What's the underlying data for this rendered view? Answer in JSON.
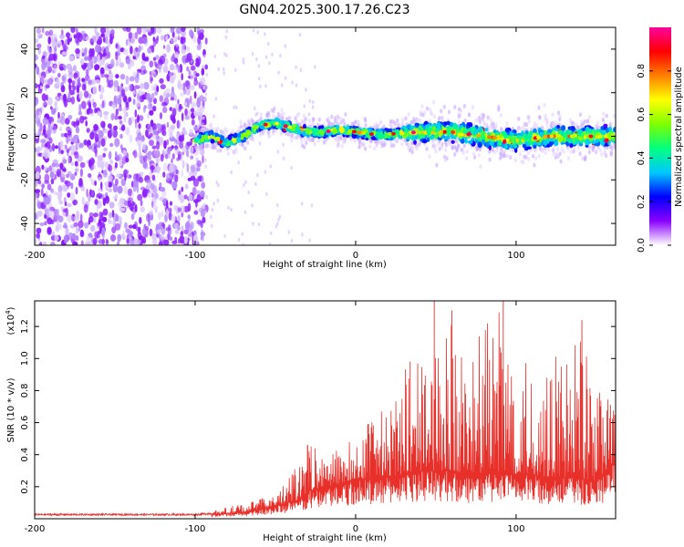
{
  "title": "GN04.2025.300.17.26.C23",
  "chart_data": [
    {
      "type": "heatmap",
      "name": "spectrogram",
      "xlabel": "Height of straight line (km)",
      "ylabel": "Frequency (Hz)",
      "xlim": [
        -200,
        162
      ],
      "ylim": [
        -50,
        50
      ],
      "xticks": [
        -200,
        -100,
        0,
        100
      ],
      "yticks": [
        -40,
        -20,
        0,
        20,
        40
      ],
      "colorbar": {
        "label": "Normalized spectral amplitude",
        "range": [
          0,
          1
        ],
        "ticks": [
          0.0,
          0.2,
          0.4,
          0.6,
          0.8
        ],
        "tick_labels": [
          "0.0",
          "0.2",
          "0.4",
          "0.6",
          "0.8"
        ],
        "colors": [
          "#ffffff",
          "#8a00ff",
          "#0000ff",
          "#00c8ff",
          "#00ff80",
          "#80ff00",
          "#ffff00",
          "#ff8000",
          "#ff0000",
          "#ff00a0"
        ]
      },
      "ridge": {
        "description": "dominant frequency trace",
        "x": [
          -100,
          -90,
          -80,
          -70,
          -60,
          -50,
          -40,
          -30,
          -20,
          -10,
          0,
          10,
          20,
          40,
          60,
          80,
          100,
          120,
          140,
          160
        ],
        "y": [
          -2,
          0,
          -3,
          0,
          5,
          6,
          4,
          2,
          2,
          3,
          2,
          1,
          1,
          2,
          2,
          0,
          -2,
          0,
          0,
          0
        ]
      }
    },
    {
      "type": "line",
      "name": "snr",
      "xlabel": "Height of straight line (km)",
      "ylabel": "SNR (10 * v/v)",
      "scale_label": "(x10",
      "scale_exponent": "4",
      "xlim": [
        -200,
        162
      ],
      "ylim": [
        0,
        1.36
      ],
      "xticks": [
        -200,
        -100,
        0,
        100
      ],
      "yticks": [
        0.2,
        0.4,
        0.6,
        0.8,
        1.0,
        1.2
      ],
      "ytick_labels": [
        "0.2",
        "0.4",
        "0.6",
        "0.8",
        "1.0",
        "1.2"
      ],
      "color": "#e8302b",
      "envelope": {
        "x": [
          -200,
          -100,
          -85,
          -70,
          -50,
          -35,
          -30,
          -20,
          -10,
          0,
          10,
          20,
          30,
          40,
          50,
          60,
          70,
          80,
          90,
          100,
          110,
          120,
          130,
          140,
          150,
          160
        ],
        "base": [
          0.02,
          0.02,
          0.03,
          0.04,
          0.08,
          0.12,
          0.17,
          0.2,
          0.22,
          0.25,
          0.25,
          0.26,
          0.28,
          0.3,
          0.3,
          0.3,
          0.28,
          0.28,
          0.28,
          0.28,
          0.27,
          0.26,
          0.26,
          0.25,
          0.24,
          0.35
        ],
        "peak": [
          0.03,
          0.03,
          0.06,
          0.1,
          0.15,
          0.35,
          0.5,
          0.4,
          0.45,
          0.5,
          0.65,
          0.7,
          0.95,
          1.0,
          1.1,
          1.3,
          1.0,
          1.2,
          1.36,
          1.1,
          0.95,
          1.05,
          1.0,
          1.2,
          1.05,
          0.7
        ]
      },
      "spikes": [
        {
          "x": 49,
          "y": 1.36
        },
        {
          "x": 60,
          "y": 1.3
        },
        {
          "x": 92,
          "y": 1.36
        },
        {
          "x": 141,
          "y": 1.24
        },
        {
          "x": -30,
          "y": 0.46
        },
        {
          "x": 34,
          "y": 0.98
        }
      ]
    }
  ]
}
